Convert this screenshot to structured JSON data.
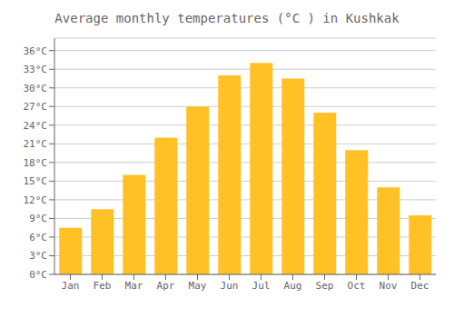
{
  "chart_data": {
    "type": "bar",
    "title": "Average monthly temperatures (°C ) in Kushkak",
    "categories": [
      "Jan",
      "Feb",
      "Mar",
      "Apr",
      "May",
      "Jun",
      "Jul",
      "Aug",
      "Sep",
      "Oct",
      "Nov",
      "Dec"
    ],
    "values": [
      7.5,
      10.5,
      16.0,
      22.0,
      27.0,
      32.0,
      34.0,
      31.5,
      26.0,
      20.0,
      14.0,
      9.5
    ],
    "color": "#FFC125",
    "ylim": [
      0,
      38
    ],
    "yticks": [
      {
        "value": 0,
        "label": "0°C"
      },
      {
        "value": 3,
        "label": "3°C"
      },
      {
        "value": 6,
        "label": "6°C"
      },
      {
        "value": 9,
        "label": "9°C"
      },
      {
        "value": 12,
        "label": "12°C"
      },
      {
        "value": 15,
        "label": "15°C"
      },
      {
        "value": 18,
        "label": "18°C"
      },
      {
        "value": 21,
        "label": "21°C"
      },
      {
        "value": 24,
        "label": "24°C"
      },
      {
        "value": 27,
        "label": "27°C"
      },
      {
        "value": 30,
        "label": "30°C"
      },
      {
        "value": 33,
        "label": "33°C"
      },
      {
        "value": 36,
        "label": "36°C"
      }
    ],
    "grid": true
  }
}
